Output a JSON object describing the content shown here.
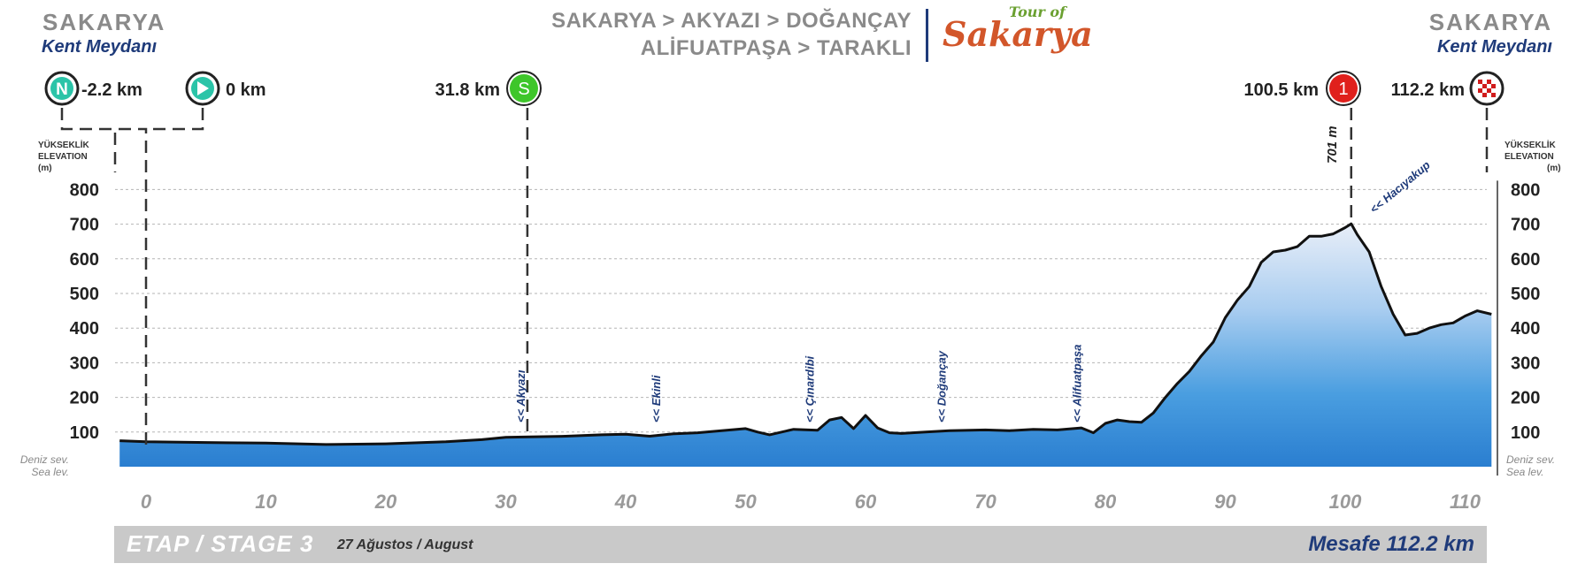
{
  "header": {
    "left_city": "SAKARYA",
    "left_sub": "Kent Meydanı",
    "right_city": "SAKARYA",
    "right_sub": "Kent Meydanı",
    "route_line1": "SAKARYA > AKYAZI > DOĞANÇAY",
    "route_line2": "ALİFUATPAŞA > TARAKLI",
    "logo_small": "Tour of",
    "logo_big": "Sakarya"
  },
  "markers": {
    "neutral": {
      "icon": "N",
      "label": "-2.2 km",
      "km": -2.2
    },
    "zero": {
      "label": "0 km",
      "km": 0
    },
    "sprint": {
      "icon": "S",
      "label": "31.8 km",
      "km": 31.8
    },
    "climb": {
      "icon": "1",
      "label": "100.5 km",
      "km": 100.5,
      "altitude_label": "701 m"
    },
    "finish": {
      "label": "112.2 km",
      "km": 112.2
    }
  },
  "elevation_label": {
    "tr": "YÜKSEKLİK",
    "en": "ELEVATION",
    "unit": "(m)"
  },
  "sea_level": {
    "tr": "Deniz sev.",
    "en": "Sea lev."
  },
  "footer": {
    "stage": "ETAP / STAGE 3",
    "date": "27 Ağustos / August",
    "distance": "Mesafe 112.2 km"
  },
  "colors": {
    "sprint": "#3ec62a",
    "climb": "#e0201c",
    "teal": "#2bc4a8",
    "title_blue": "#1f3b7a",
    "profile_fill": "#4a9ee0"
  },
  "chart_data": {
    "type": "area",
    "xlabel": "",
    "ylabel": "",
    "xlim": [
      -2.2,
      112.2
    ],
    "ylim": [
      0,
      800
    ],
    "x_ticks": [
      0,
      10,
      20,
      30,
      40,
      50,
      60,
      70,
      80,
      90,
      100,
      110
    ],
    "y_ticks": [
      100,
      200,
      300,
      400,
      500,
      600,
      700,
      800
    ],
    "grid": true,
    "series": [
      {
        "x": [
          -2.2,
          0,
          5,
          10,
          15,
          20,
          25,
          28,
          30,
          32,
          35,
          38,
          40,
          42,
          44,
          46,
          48,
          50,
          51,
          52,
          54,
          56,
          57,
          58,
          59,
          60,
          61,
          62,
          63,
          65,
          67,
          70,
          72,
          74,
          76,
          78,
          79,
          80,
          81,
          82,
          83,
          84,
          85,
          86,
          87,
          88,
          89,
          90,
          91,
          92,
          93,
          94,
          95,
          96,
          97,
          98,
          99,
          100,
          100.5,
          101,
          102,
          103,
          104,
          105,
          106,
          107,
          108,
          109,
          110,
          111,
          112.2
        ],
        "y": [
          75,
          72,
          70,
          68,
          64,
          66,
          72,
          78,
          85,
          86,
          88,
          92,
          94,
          88,
          95,
          98,
          104,
          110,
          100,
          92,
          108,
          105,
          135,
          142,
          110,
          148,
          112,
          98,
          96,
          100,
          104,
          106,
          104,
          108,
          106,
          112,
          98,
          125,
          135,
          130,
          128,
          155,
          200,
          240,
          275,
          320,
          360,
          430,
          480,
          520,
          590,
          620,
          625,
          635,
          665,
          665,
          672,
          690,
          701,
          670,
          620,
          520,
          440,
          380,
          385,
          400,
          410,
          415,
          435,
          450,
          440
        ]
      }
    ],
    "annotations": [
      {
        "text": "<< Akyazı",
        "km": 31.2
      },
      {
        "text": "<< Ekinli",
        "km": 42.5
      },
      {
        "text": "<< Çınardibi",
        "km": 55.3
      },
      {
        "text": "<< Doğançay",
        "km": 66.3
      },
      {
        "text": "<< Alifuatpaşa",
        "km": 77.6
      },
      {
        "text": "<< Hacıyakup",
        "km": 103
      }
    ]
  }
}
